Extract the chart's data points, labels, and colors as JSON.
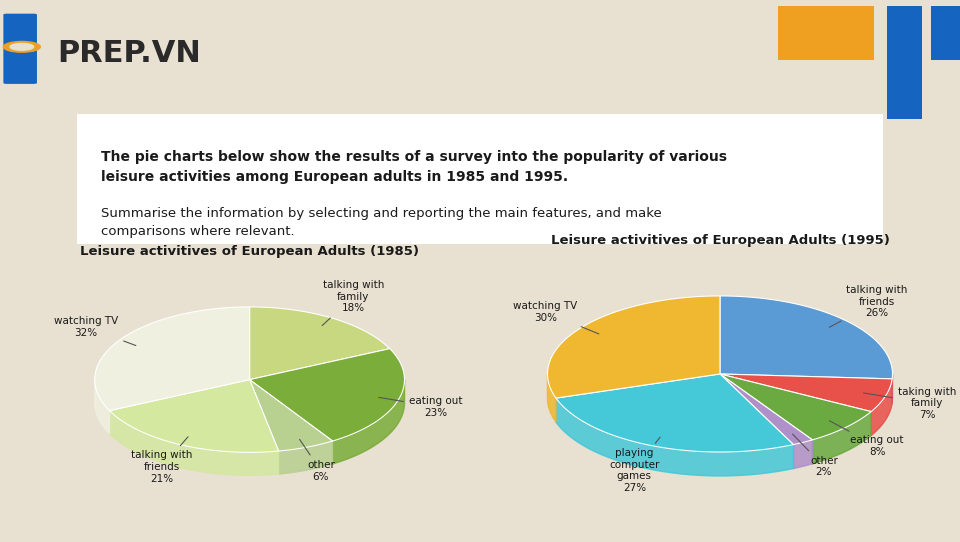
{
  "bg_color": "#e8e0d0",
  "title_box_text_bold": "The pie charts below show the results of a survey into the popularity of various\nleisure activities among European adults in 1985 and 1995.",
  "title_box_text_normal": "Summarise the information by selecting and reporting the main features, and make\ncomparisons where relevant.",
  "chart1_title": "Leisure activitives of European Adults (1985)",
  "chart1_labels": [
    "talking with\nfamily",
    "eating out",
    "other",
    "talking with\nfriends",
    "watching TV"
  ],
  "chart1_values": [
    18,
    23,
    6,
    21,
    32
  ],
  "chart1_colors": [
    "#c8d880",
    "#7aad3a",
    "#b8d090",
    "#d4e8a0",
    "#f0f0e0"
  ],
  "chart1_pct": [
    "18%",
    "23%",
    "6%",
    "21%",
    "32%"
  ],
  "chart2_title": "Leisure activitives of European Adults (1995)",
  "chart2_labels": [
    "talking with\nfriends",
    "taking with\nfamily",
    "eating out",
    "other",
    "playing\ncomputer\ngames",
    "watching TV"
  ],
  "chart2_values": [
    26,
    7,
    8,
    2,
    27,
    30
  ],
  "chart2_colors": [
    "#5b9bd5",
    "#e8504a",
    "#6aaa40",
    "#b090c8",
    "#45c8d8",
    "#f0b830"
  ],
  "chart2_pct": [
    "26%",
    "7%",
    "8%",
    "2%",
    "27%",
    "30%"
  ],
  "prep_logo_blue": "#1565c0",
  "prep_logo_orange": "#f0a020",
  "accent_blue": "#1565c0",
  "accent_orange": "#f0a020"
}
